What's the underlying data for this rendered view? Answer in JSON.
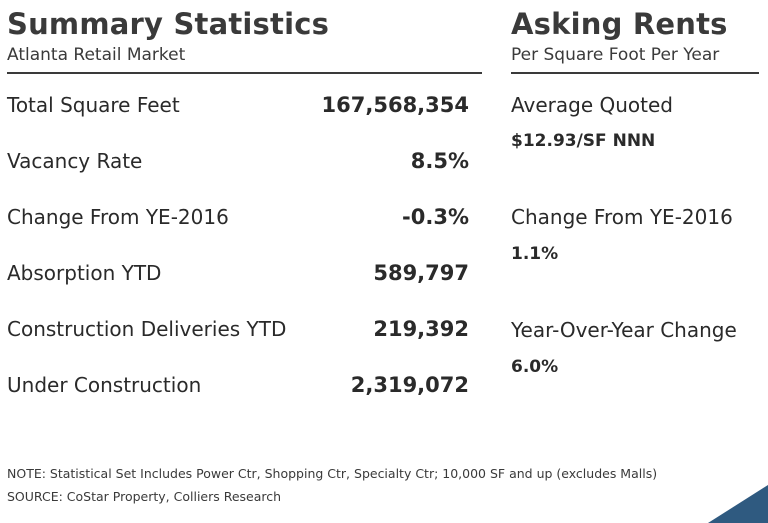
{
  "summary": {
    "title": "Summary Statistics",
    "subtitle": "Atlanta Retail Market",
    "rows": [
      {
        "label": "Total Square Feet",
        "value": "167,568,354"
      },
      {
        "label": "Vacancy Rate",
        "value": "8.5%"
      },
      {
        "label": "Change From YE-2016",
        "value": "-0.3%"
      },
      {
        "label": "Absorption YTD",
        "value": "589,797"
      },
      {
        "label": "Construction Deliveries YTD",
        "value": "219,392"
      },
      {
        "label": "Under Construction",
        "value": "2,319,072"
      }
    ]
  },
  "rents": {
    "title": "Asking Rents",
    "subtitle": "Per Square Foot Per Year",
    "items": [
      {
        "label": "Average Quoted",
        "value": "$12.93/SF NNN"
      },
      {
        "label": "Change From YE-2016",
        "value": "1.1%"
      },
      {
        "label": "Year-Over-Year Change",
        "value": "6.0%"
      }
    ]
  },
  "notes": {
    "note": "NOTE:  Statistical Set Includes Power Ctr, Shopping Ctr, Specialty Ctr; 10,000 SF and up (excludes Malls)",
    "source": "SOURCE:  CoStar Property, Colliers Research"
  },
  "colors": {
    "text": "#2a2a2a",
    "corner_accent": "#2f5a80"
  }
}
